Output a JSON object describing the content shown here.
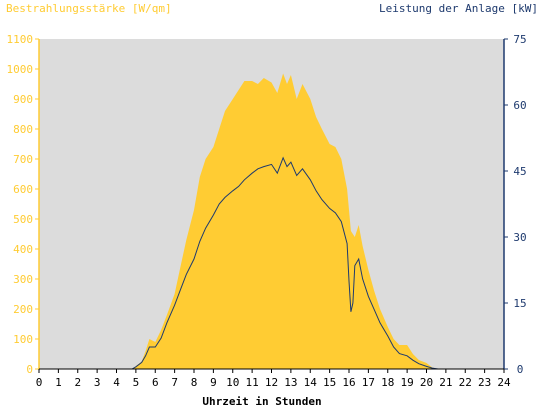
{
  "chart_data": {
    "type": "area",
    "title": "",
    "ylabel_left": "Bestrahlungsstärke [W/qm]",
    "ylabel_right": "Leistung der Anlage [kW]",
    "xlabel": "Uhrzeit in Stunden",
    "xlim": [
      0,
      24
    ],
    "ylim_left": [
      0,
      1100
    ],
    "ylim_right": [
      0,
      75
    ],
    "x_ticks": [
      "0",
      "1",
      "2",
      "3",
      "4",
      "5",
      "6",
      "7",
      "8",
      "9",
      "10",
      "11",
      "12",
      "13",
      "14",
      "15",
      "16",
      "17",
      "18",
      "19",
      "20",
      "21",
      "22",
      "23",
      "24"
    ],
    "y_ticks_left": [
      "0",
      "100",
      "200",
      "300",
      "400",
      "500",
      "600",
      "700",
      "800",
      "900",
      "1000",
      "1100"
    ],
    "y_ticks_right": [
      "0",
      "15",
      "30",
      "45",
      "60",
      "75"
    ],
    "grid": false,
    "colors": {
      "irradiance": "#ffcc33",
      "power": "#1e3a6e",
      "plot_background": "#dcdcdc",
      "left_axis_text": "#ffcc33",
      "right_axis_text": "#1e3a6e"
    },
    "series": [
      {
        "name": "Bestrahlungsstärke [W/qm]",
        "axis": "left",
        "x": [
          0,
          4.8,
          5.0,
          5.3,
          5.5,
          5.7,
          6.0,
          6.3,
          6.6,
          7.0,
          7.3,
          7.6,
          8.0,
          8.3,
          8.6,
          9.0,
          9.3,
          9.6,
          10.0,
          10.3,
          10.6,
          11.0,
          11.3,
          11.6,
          12.0,
          12.3,
          12.6,
          12.8,
          13.0,
          13.3,
          13.6,
          14.0,
          14.3,
          14.6,
          15.0,
          15.3,
          15.6,
          15.9,
          16.1,
          16.3,
          16.5,
          16.7,
          17.0,
          17.3,
          17.6,
          18.0,
          18.3,
          18.6,
          19.0,
          19.3,
          19.6,
          20.0,
          20.3,
          20.6,
          24
        ],
        "values": [
          0,
          0,
          10,
          25,
          60,
          100,
          90,
          130,
          180,
          250,
          340,
          430,
          530,
          640,
          700,
          740,
          800,
          860,
          900,
          930,
          960,
          960,
          950,
          970,
          955,
          920,
          985,
          950,
          980,
          900,
          950,
          900,
          840,
          800,
          750,
          740,
          700,
          600,
          460,
          440,
          480,
          410,
          330,
          260,
          200,
          140,
          100,
          80,
          80,
          50,
          30,
          20,
          5,
          0,
          0
        ]
      },
      {
        "name": "Leistung der Anlage [kW]",
        "axis": "right",
        "x": [
          0,
          4.8,
          5.0,
          5.3,
          5.5,
          5.7,
          6.0,
          6.3,
          6.6,
          7.0,
          7.3,
          7.6,
          8.0,
          8.3,
          8.6,
          9.0,
          9.3,
          9.6,
          10.0,
          10.3,
          10.6,
          11.0,
          11.3,
          11.6,
          12.0,
          12.3,
          12.6,
          12.8,
          13.0,
          13.3,
          13.6,
          14.0,
          14.3,
          14.6,
          15.0,
          15.3,
          15.6,
          15.9,
          16.0,
          16.1,
          16.2,
          16.3,
          16.5,
          16.7,
          17.0,
          17.3,
          17.6,
          18.0,
          18.3,
          18.6,
          19.0,
          19.3,
          19.6,
          20.0,
          20.3,
          20.6,
          24
        ],
        "values": [
          0,
          0,
          0.5,
          1.5,
          3,
          5,
          5,
          7,
          10.5,
          14.5,
          18,
          21.5,
          25,
          29,
          32,
          35,
          37.5,
          39,
          40.5,
          41.5,
          43,
          44.5,
          45.5,
          46,
          46.5,
          44.5,
          48,
          46,
          47,
          44,
          45.5,
          43,
          40.5,
          38.5,
          36.5,
          35.5,
          33.5,
          28.5,
          20,
          13,
          15,
          23.5,
          25,
          20.5,
          16.5,
          13.5,
          10.5,
          7.5,
          5,
          3.5,
          3,
          2,
          1.2,
          0.6,
          0.2,
          0,
          0
        ]
      }
    ]
  }
}
